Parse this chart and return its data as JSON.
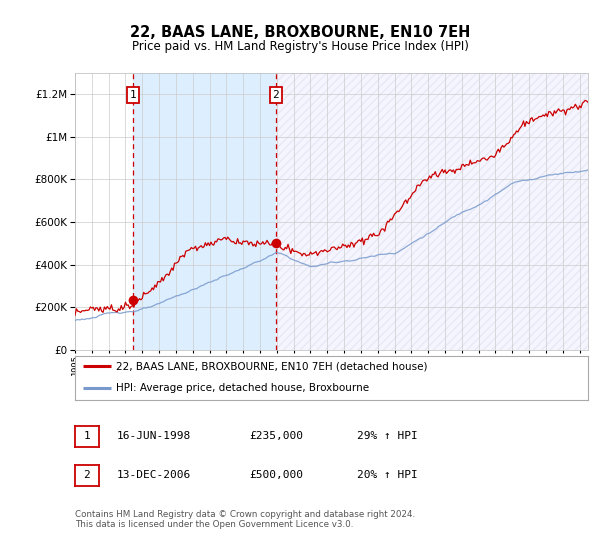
{
  "title": "22, BAAS LANE, BROXBOURNE, EN10 7EH",
  "subtitle": "Price paid vs. HM Land Registry's House Price Index (HPI)",
  "background_color": "#ffffff",
  "plot_bg_color": "#ffffff",
  "ylim": [
    0,
    1300000
  ],
  "yticks": [
    0,
    200000,
    400000,
    600000,
    800000,
    1000000,
    1200000
  ],
  "ytick_labels": [
    "£0",
    "£200K",
    "£400K",
    "£600K",
    "£800K",
    "£1M",
    "£1.2M"
  ],
  "xmin": 1995.0,
  "xmax": 2025.5,
  "purchase1_date": 1998.46,
  "purchase1_price": 235000,
  "purchase2_date": 2006.95,
  "purchase2_price": 500000,
  "purchase1_label": "1",
  "purchase2_label": "2",
  "legend_line1": "22, BAAS LANE, BROXBOURNE, EN10 7EH (detached house)",
  "legend_line2": "HPI: Average price, detached house, Broxbourne",
  "table_row1": [
    "1",
    "16-JUN-1998",
    "£235,000",
    "29% ↑ HPI"
  ],
  "table_row2": [
    "2",
    "13-DEC-2006",
    "£500,000",
    "20% ↑ HPI"
  ],
  "footer": "Contains HM Land Registry data © Crown copyright and database right 2024.\nThis data is licensed under the Open Government Licence v3.0.",
  "red_color": "#cc0000",
  "blue_color": "#7799cc",
  "shade_between_color": "#ddeeff",
  "grid_color": "#cccccc",
  "dashed_line_color": "#cc0000"
}
